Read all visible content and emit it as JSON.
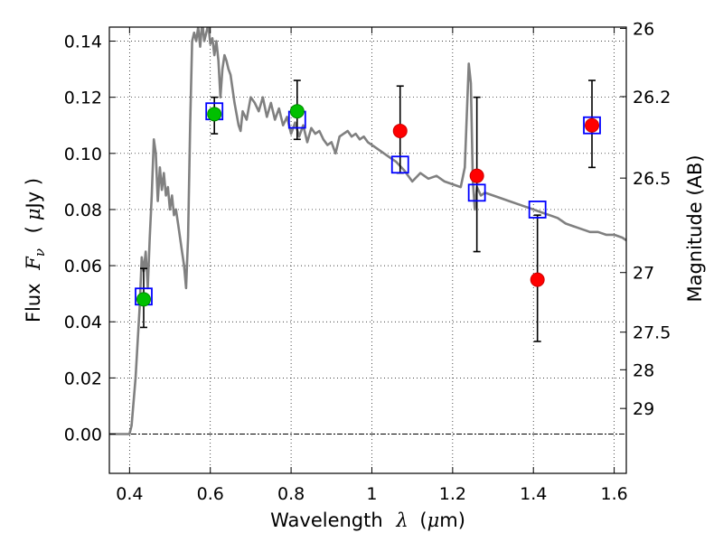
{
  "chart_data": {
    "type": "scatter",
    "xlabel": {
      "prefix": "Wavelength",
      "symbol": "λ",
      "unit_open": "(",
      "unit_mu": "μ",
      "unit_rest": "m)"
    },
    "ylabel": {
      "prefix": "Flux",
      "symbol": "F",
      "sub": "ν",
      "unit_open": "(",
      "unit_mu": "μ",
      "unit_rest": "Jy )"
    },
    "y2label": "Magnitude (AB)",
    "xlim": [
      0.35,
      1.63
    ],
    "ylim": [
      -0.014,
      0.145
    ],
    "grid": true,
    "x_ticks": [
      {
        "v": 0.4,
        "label": "0.4"
      },
      {
        "v": 0.6,
        "label": "0.6"
      },
      {
        "v": 0.8,
        "label": "0.8"
      },
      {
        "v": 1.0,
        "label": "1"
      },
      {
        "v": 1.2,
        "label": "1.2"
      },
      {
        "v": 1.4,
        "label": "1.4"
      },
      {
        "v": 1.6,
        "label": "1.6"
      }
    ],
    "y_ticks": [
      {
        "v": 0.0,
        "label": "0.00"
      },
      {
        "v": 0.02,
        "label": "0.02"
      },
      {
        "v": 0.04,
        "label": "0.04"
      },
      {
        "v": 0.06,
        "label": "0.06"
      },
      {
        "v": 0.08,
        "label": "0.08"
      },
      {
        "v": 0.1,
        "label": "0.10"
      },
      {
        "v": 0.12,
        "label": "0.12"
      },
      {
        "v": 0.14,
        "label": "0.14"
      }
    ],
    "y2_ticks": [
      {
        "mag": 26,
        "label": "26"
      },
      {
        "mag": 26.2,
        "label": "26.2"
      },
      {
        "mag": 26.5,
        "label": "26.5"
      },
      {
        "mag": 27,
        "label": "27"
      },
      {
        "mag": 27.5,
        "label": "27.5"
      },
      {
        "mag": 28,
        "label": "28"
      },
      {
        "mag": 29,
        "label": "29"
      }
    ],
    "series": [
      {
        "kind": "line",
        "color": "#808080",
        "x": [
          0.35,
          0.4,
          0.405,
          0.415,
          0.425,
          0.43,
          0.435,
          0.44,
          0.445,
          0.45,
          0.455,
          0.46,
          0.465,
          0.47,
          0.475,
          0.48,
          0.485,
          0.49,
          0.495,
          0.5,
          0.505,
          0.51,
          0.515,
          0.52,
          0.525,
          0.53,
          0.535,
          0.54,
          0.545,
          0.55,
          0.555,
          0.56,
          0.565,
          0.57,
          0.575,
          0.58,
          0.585,
          0.59,
          0.595,
          0.6,
          0.605,
          0.61,
          0.615,
          0.62,
          0.625,
          0.63,
          0.635,
          0.64,
          0.645,
          0.65,
          0.66,
          0.67,
          0.675,
          0.68,
          0.69,
          0.7,
          0.71,
          0.72,
          0.73,
          0.74,
          0.75,
          0.76,
          0.77,
          0.78,
          0.79,
          0.8,
          0.81,
          0.82,
          0.83,
          0.84,
          0.85,
          0.86,
          0.87,
          0.88,
          0.89,
          0.9,
          0.91,
          0.92,
          0.93,
          0.94,
          0.95,
          0.96,
          0.97,
          0.98,
          0.99,
          1.0,
          1.02,
          1.04,
          1.06,
          1.08,
          1.1,
          1.12,
          1.14,
          1.16,
          1.18,
          1.2,
          1.22,
          1.23,
          1.24,
          1.245,
          1.25,
          1.255,
          1.26,
          1.27,
          1.28,
          1.3,
          1.32,
          1.34,
          1.36,
          1.38,
          1.4,
          1.42,
          1.44,
          1.46,
          1.48,
          1.5,
          1.52,
          1.54,
          1.56,
          1.58,
          1.6,
          1.62,
          1.63
        ],
        "y": [
          0.0,
          0.0,
          0.003,
          0.02,
          0.045,
          0.063,
          0.058,
          0.065,
          0.052,
          0.07,
          0.085,
          0.105,
          0.1,
          0.083,
          0.095,
          0.087,
          0.093,
          0.085,
          0.088,
          0.08,
          0.085,
          0.078,
          0.08,
          0.075,
          0.07,
          0.065,
          0.06,
          0.052,
          0.07,
          0.11,
          0.14,
          0.143,
          0.14,
          0.145,
          0.138,
          0.147,
          0.14,
          0.143,
          0.146,
          0.139,
          0.141,
          0.135,
          0.14,
          0.133,
          0.12,
          0.13,
          0.135,
          0.133,
          0.13,
          0.128,
          0.118,
          0.11,
          0.108,
          0.115,
          0.112,
          0.12,
          0.118,
          0.115,
          0.12,
          0.113,
          0.118,
          0.112,
          0.116,
          0.11,
          0.113,
          0.107,
          0.111,
          0.106,
          0.11,
          0.104,
          0.109,
          0.107,
          0.108,
          0.105,
          0.103,
          0.104,
          0.1,
          0.106,
          0.107,
          0.108,
          0.106,
          0.107,
          0.105,
          0.106,
          0.104,
          0.103,
          0.101,
          0.099,
          0.097,
          0.094,
          0.09,
          0.093,
          0.091,
          0.092,
          0.09,
          0.089,
          0.088,
          0.095,
          0.132,
          0.125,
          0.09,
          0.08,
          0.088,
          0.085,
          0.086,
          0.085,
          0.084,
          0.083,
          0.082,
          0.081,
          0.08,
          0.079,
          0.078,
          0.077,
          0.075,
          0.074,
          0.073,
          0.072,
          0.072,
          0.071,
          0.071,
          0.07,
          0.069
        ]
      },
      {
        "kind": "squares",
        "color": "#0000ff",
        "points": [
          {
            "x": 0.435,
            "y": 0.049
          },
          {
            "x": 0.61,
            "y": 0.115
          },
          {
            "x": 0.815,
            "y": 0.112
          },
          {
            "x": 1.07,
            "y": 0.096
          },
          {
            "x": 1.26,
            "y": 0.086
          },
          {
            "x": 1.41,
            "y": 0.08
          },
          {
            "x": 1.545,
            "y": 0.11
          }
        ]
      },
      {
        "kind": "circles",
        "color": "#00c000",
        "edge": "#008800",
        "points": [
          {
            "x": 0.435,
            "y": 0.048,
            "ylo": 0.038,
            "yhi": 0.059
          },
          {
            "x": 0.61,
            "y": 0.114,
            "ylo": 0.107,
            "yhi": 0.12
          },
          {
            "x": 0.815,
            "y": 0.115,
            "ylo": 0.105,
            "yhi": 0.126
          }
        ]
      },
      {
        "kind": "circles",
        "color": "#ff0000",
        "edge": "#cc0000",
        "points": [
          {
            "x": 1.07,
            "y": 0.108,
            "ylo": 0.093,
            "yhi": 0.124
          },
          {
            "x": 1.26,
            "y": 0.092,
            "ylo": 0.065,
            "yhi": 0.12
          },
          {
            "x": 1.41,
            "y": 0.055,
            "ylo": 0.033,
            "yhi": 0.078
          },
          {
            "x": 1.545,
            "y": 0.11,
            "ylo": 0.095,
            "yhi": 0.126
          }
        ]
      }
    ]
  }
}
